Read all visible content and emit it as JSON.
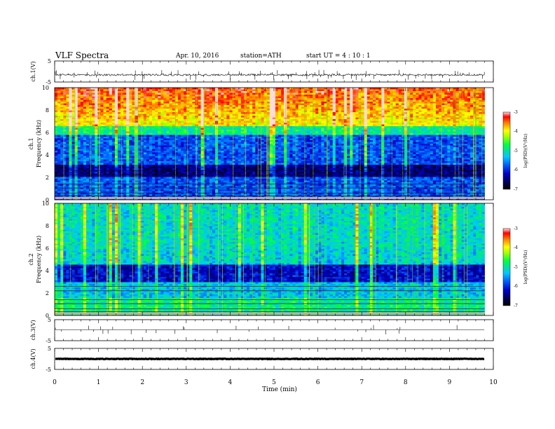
{
  "header": {
    "title": "VLF  Spectra",
    "date": "Apr. 10, 2016",
    "station": "station=ATH",
    "start": "start  UT  =   4  : 10 : 1"
  },
  "chart_data": [
    {
      "type": "line",
      "panel": "ch1-waveform",
      "ylabel": "ch.1(V)",
      "ylim": [
        -5,
        5
      ],
      "yticks": [
        "5",
        "-5"
      ],
      "xlim": [
        0,
        10
      ],
      "x_end": 9.8,
      "baseline": -1.6,
      "color": "#000000"
    },
    {
      "type": "heatmap",
      "panel": "ch1-spectrogram",
      "ylabel_lines": [
        "ch.1",
        "Frequency  (kHz)"
      ],
      "ylim": [
        0,
        10
      ],
      "yticks": [
        "10",
        "8",
        "6",
        "4",
        "2",
        "0"
      ],
      "xlim": [
        0,
        10
      ],
      "x_end": 9.8,
      "colorbar": {
        "label": "log(PSD)(V²/Hz)",
        "range": [
          -7,
          -3
        ],
        "ticks": [
          "-3",
          "-4",
          "-5",
          "-6",
          "-7"
        ]
      }
    },
    {
      "type": "heatmap",
      "panel": "ch2-spectrogram",
      "ylabel_lines": [
        "ch.2",
        "Frequency  (kHz)"
      ],
      "ylim": [
        0,
        10
      ],
      "yticks": [
        "10",
        "8",
        "6",
        "4",
        "2",
        "0"
      ],
      "xlim": [
        0,
        10
      ],
      "x_end": 9.8,
      "colorbar": {
        "label": "log(PSD)(V²/Hz)",
        "range": [
          -7,
          -3
        ],
        "ticks": [
          "-3",
          "-4",
          "-5",
          "-6",
          "-7"
        ]
      }
    },
    {
      "type": "line",
      "panel": "ch3-waveform",
      "ylabel": "ch.3(V)",
      "ylim": [
        -5,
        5
      ],
      "yticks": [
        "5",
        "-5"
      ],
      "xlim": [
        0,
        10
      ],
      "x_end": 9.8,
      "baseline": 0.2,
      "color": "#000000"
    },
    {
      "type": "line",
      "panel": "ch4-waveform",
      "ylabel": "ch.4(V)",
      "ylim": [
        -5,
        5
      ],
      "yticks": [
        "5",
        "-5"
      ],
      "xlim": [
        0,
        10
      ],
      "x_end": 9.8,
      "baseline": 0,
      "color": "#000000"
    }
  ],
  "xaxis": {
    "label": "Time  (min)",
    "ticks": [
      "0",
      "1",
      "2",
      "3",
      "4",
      "5",
      "6",
      "7",
      "8",
      "9",
      "10"
    ]
  }
}
